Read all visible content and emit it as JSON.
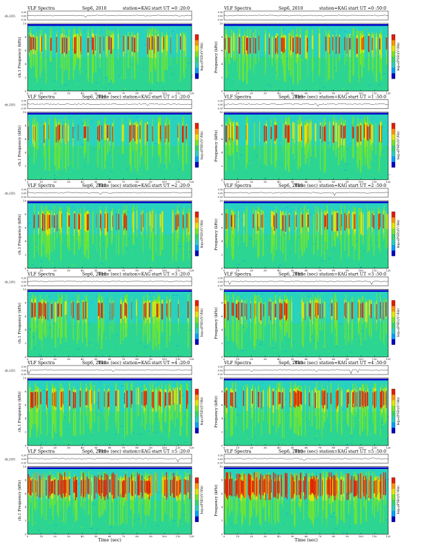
{
  "chart_data": {
    "type": "heatmap",
    "panel_title_prefix": "VLF Spectra",
    "date": "Sep6, 2010",
    "station": "station=KAG",
    "start_prefix": "start UT =",
    "xlabel": "Time (sec)",
    "amp_label": "ch.1(V)",
    "ylabel_left": "ch.1 Frequency (kHz)",
    "ylabel_right": "Frequency (kHz)",
    "colorbar_label": "log₁₀(PSD)(V²/Hz)",
    "amp_ticks": [
      "0.30",
      "0.00",
      "-0.30"
    ],
    "x_ticks": [
      "0",
      "10",
      "20",
      "30",
      "40",
      "50",
      "60",
      "70",
      "80",
      "90",
      "100",
      "110",
      "120"
    ],
    "y_ticks": [
      "10",
      "8",
      "6",
      "4",
      "2",
      "0"
    ],
    "xlim": [
      0,
      120
    ],
    "ylim": [
      0,
      10
    ],
    "colors": [
      "#0000c8",
      "#00a0ff",
      "#28d2be",
      "#32d76e",
      "#78e628",
      "#e6e600",
      "#ff9600",
      "#e61e00"
    ],
    "panels": [
      {
        "start": "0 :20:0",
        "activity": 0.4
      },
      {
        "start": "0 :50:0",
        "activity": 0.45
      },
      {
        "start": "1 :20:0",
        "activity": 0.35
      },
      {
        "start": "1 :50:0",
        "activity": 0.42
      },
      {
        "start": "2 :20:0",
        "activity": 0.45
      },
      {
        "start": "2 :50:0",
        "activity": 0.45
      },
      {
        "start": "3 :20:0",
        "activity": 0.42
      },
      {
        "start": "3 :50:0",
        "activity": 0.42
      },
      {
        "start": "4 :20:0",
        "activity": 0.55
      },
      {
        "start": "4 :50:0",
        "activity": 0.58
      },
      {
        "start": "5 :20:0",
        "activity": 0.7
      },
      {
        "start": "5 :50:0",
        "activity": 0.85
      }
    ]
  }
}
